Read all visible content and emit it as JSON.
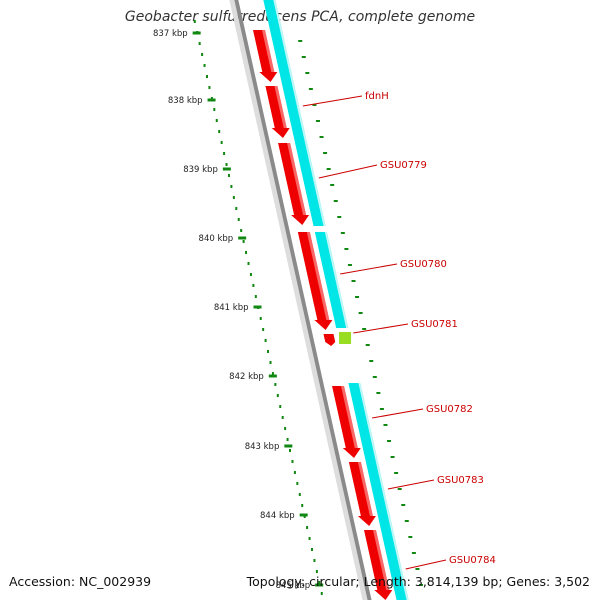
{
  "title": "Geobacter sulfurreducens PCA, complete genome",
  "footer": {
    "accession": "Accession: NC_002939",
    "summary": "Topology: circular; Length: 3,814,139 bp; Genes: 3,502"
  },
  "colors": {
    "backbone": "#8a8a8a",
    "cds_red": "#ee0000",
    "cds_cyan": "#00e5e5",
    "highlight_green": "#99dd22",
    "tick_green": "#118811",
    "label_red": "#cc0000"
  },
  "ruler": {
    "labels": [
      "837 kbp",
      "838 kbp",
      "839 kbp",
      "840 kbp",
      "841 kbp",
      "842 kbp",
      "843 kbp",
      "844 kbp",
      "845 kbp"
    ]
  },
  "genes": [
    {
      "label": "fdnH"
    },
    {
      "label": "GSU0779"
    },
    {
      "label": "GSU0780"
    },
    {
      "label": "GSU0781"
    },
    {
      "label": "GSU0782"
    },
    {
      "label": "GSU0783"
    },
    {
      "label": "GSU0784"
    }
  ]
}
